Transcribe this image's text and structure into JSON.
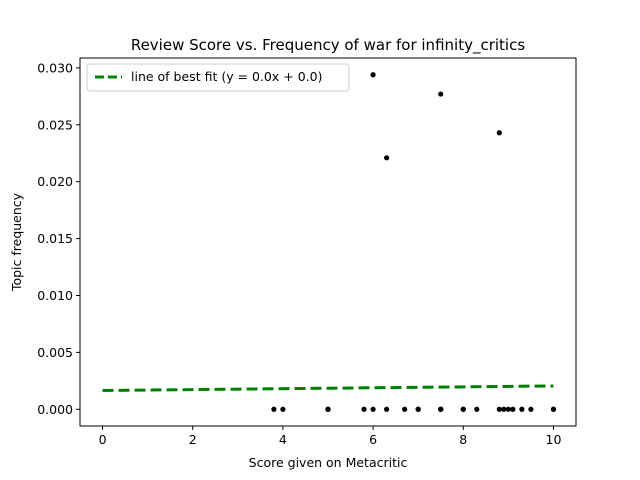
{
  "chart_data": {
    "type": "scatter",
    "title": "Review Score vs. Frequency of war for infinity_critics",
    "xlabel": "Score given on Metacritic",
    "ylabel": "Topic frequency",
    "xlim": [
      -0.5,
      10.5
    ],
    "ylim": [
      -0.00147,
      0.03087
    ],
    "xticks": [
      0,
      2,
      4,
      6,
      8,
      10
    ],
    "xtick_labels": [
      "0",
      "2",
      "4",
      "6",
      "8",
      "10"
    ],
    "yticks": [
      0.0,
      0.005,
      0.01,
      0.015,
      0.02,
      0.025,
      0.03
    ],
    "ytick_labels": [
      "0.000",
      "0.005",
      "0.010",
      "0.015",
      "0.020",
      "0.025",
      "0.030"
    ],
    "grid": false,
    "legend": {
      "placement": "top-left",
      "entries": [
        "line of best fit (y = 0.0x + 0.0)"
      ]
    },
    "points": [
      {
        "x": 3.8,
        "y": 0.0
      },
      {
        "x": 4.0,
        "y": 0.0
      },
      {
        "x": 5.0,
        "y": 0.0
      },
      {
        "x": 5.0,
        "y": 0.0
      },
      {
        "x": 5.0,
        "y": 0.0
      },
      {
        "x": 5.8,
        "y": 0.0
      },
      {
        "x": 6.0,
        "y": 0.0
      },
      {
        "x": 6.3,
        "y": 0.0
      },
      {
        "x": 6.7,
        "y": 0.0
      },
      {
        "x": 7.0,
        "y": 0.0
      },
      {
        "x": 7.0,
        "y": 0.0
      },
      {
        "x": 7.5,
        "y": 0.0
      },
      {
        "x": 7.5,
        "y": 0.0
      },
      {
        "x": 7.5,
        "y": 0.0
      },
      {
        "x": 8.0,
        "y": 0.0
      },
      {
        "x": 8.0,
        "y": 0.0
      },
      {
        "x": 8.3,
        "y": 0.0
      },
      {
        "x": 8.8,
        "y": 0.0
      },
      {
        "x": 8.9,
        "y": 0.0
      },
      {
        "x": 9.0,
        "y": 0.0
      },
      {
        "x": 9.1,
        "y": 0.0
      },
      {
        "x": 9.3,
        "y": 0.0
      },
      {
        "x": 9.5,
        "y": 0.0
      },
      {
        "x": 10.0,
        "y": 0.0
      },
      {
        "x": 10.0,
        "y": 0.0
      },
      {
        "x": 6.0,
        "y": 0.0294
      },
      {
        "x": 6.3,
        "y": 0.0221
      },
      {
        "x": 7.5,
        "y": 0.0277
      },
      {
        "x": 8.8,
        "y": 0.0243
      }
    ],
    "fit_line": {
      "label": "line of best fit (y = 0.0x + 0.0)",
      "color": "#008000",
      "x": [
        0,
        10
      ],
      "y": [
        0.00165,
        0.00205
      ]
    },
    "point_color": "#000000"
  }
}
